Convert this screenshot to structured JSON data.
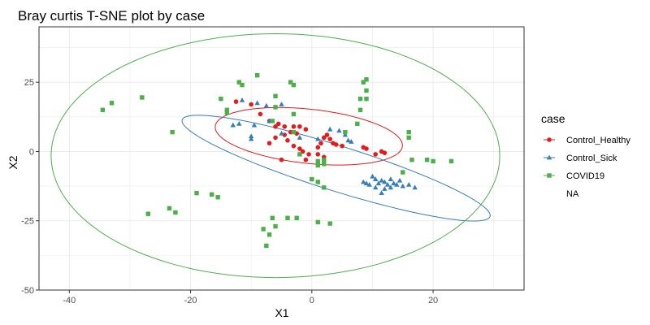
{
  "chart_data": {
    "type": "scatter",
    "title": "Bray curtis T-SNE plot by case",
    "xlabel": "X1",
    "ylabel": "X2",
    "xlim": [
      -45,
      35
    ],
    "ylim": [
      -50,
      45
    ],
    "x_ticks": [
      -40,
      -20,
      0,
      20
    ],
    "y_ticks": [
      -50,
      -25,
      0,
      25
    ],
    "grid": true,
    "legend": {
      "title": "case",
      "position": "right",
      "entries": [
        "Control_Healthy",
        "Control_Sick",
        "COVID19",
        "NA"
      ]
    },
    "series": [
      {
        "name": "Control_Healthy",
        "color": "#e41a1c",
        "marker": "circle",
        "points": [
          [
            -12.5,
            18
          ],
          [
            -10,
            17
          ],
          [
            -8.5,
            13.5
          ],
          [
            -7,
            11
          ],
          [
            -5.5,
            10
          ],
          [
            -4.5,
            9
          ],
          [
            -6,
            9
          ],
          [
            -3,
            9
          ],
          [
            -2,
            9
          ],
          [
            -1,
            8
          ],
          [
            -3.5,
            7
          ],
          [
            -4.5,
            6
          ],
          [
            -2.5,
            6.5
          ],
          [
            -6,
            5
          ],
          [
            -4,
            4
          ],
          [
            -3,
            2
          ],
          [
            -2,
            1
          ],
          [
            -1.5,
            0
          ],
          [
            -0.5,
            -1
          ],
          [
            1,
            1.5
          ],
          [
            1.5,
            3
          ],
          [
            2,
            5
          ],
          [
            2.5,
            6
          ],
          [
            3,
            4.5
          ],
          [
            3.5,
            3
          ],
          [
            4,
            2.5
          ],
          [
            5,
            2
          ],
          [
            1,
            -1
          ],
          [
            -7,
            3
          ],
          [
            -5,
            -3
          ],
          [
            9,
            1
          ],
          [
            11.5,
            0
          ],
          [
            12,
            -0.5
          ],
          [
            10.5,
            -1
          ],
          [
            8.5,
            1.5
          ],
          [
            -1,
            -3
          ],
          [
            2,
            -2
          ]
        ]
      },
      {
        "name": "Control_Sick",
        "color": "#377eb8",
        "marker": "triangle",
        "points": [
          [
            -11.5,
            18.5
          ],
          [
            -9,
            17.5
          ],
          [
            -7.5,
            16.5
          ],
          [
            -5,
            17
          ],
          [
            -12,
            10
          ],
          [
            -13,
            9.5
          ],
          [
            -9.5,
            9.5
          ],
          [
            -7,
            11
          ],
          [
            -10,
            5.5
          ],
          [
            -10,
            4.5
          ],
          [
            -5,
            6.5
          ],
          [
            -2,
            5
          ],
          [
            1,
            4.5
          ],
          [
            4.5,
            7.5
          ],
          [
            5.5,
            6
          ],
          [
            6,
            4
          ],
          [
            6.5,
            3.5
          ],
          [
            3,
            8
          ],
          [
            10,
            -9
          ],
          [
            10.5,
            -10
          ],
          [
            11,
            -11.5
          ],
          [
            11.5,
            -10.5
          ],
          [
            12,
            -11
          ],
          [
            12.5,
            -12
          ],
          [
            13,
            -10
          ],
          [
            13.5,
            -11.5
          ],
          [
            14,
            -12
          ],
          [
            14.5,
            -10.5
          ],
          [
            15,
            -12.5
          ],
          [
            16,
            -12
          ],
          [
            17,
            -13
          ],
          [
            10.5,
            -13
          ],
          [
            9.5,
            -12
          ],
          [
            8.5,
            -11
          ],
          [
            9,
            -11.5
          ],
          [
            12,
            -13.5
          ],
          [
            13,
            -13
          ],
          [
            11.5,
            -15
          ]
        ]
      },
      {
        "name": "COVID19",
        "color": "#4daf4a",
        "marker": "square",
        "points": [
          [
            -34.5,
            15
          ],
          [
            -33,
            17.5
          ],
          [
            -28,
            19.5
          ],
          [
            -27,
            -22.5
          ],
          [
            -23.5,
            -20.5
          ],
          [
            -22.5,
            -22
          ],
          [
            -23,
            7
          ],
          [
            -19,
            -15
          ],
          [
            -16.5,
            -15.5
          ],
          [
            -15.5,
            -16.5
          ],
          [
            -15,
            19
          ],
          [
            -14,
            15
          ],
          [
            -14,
            14
          ],
          [
            -12,
            25
          ],
          [
            -11.5,
            24
          ],
          [
            -9,
            27.5
          ],
          [
            -6.5,
            11
          ],
          [
            -6,
            16
          ],
          [
            -6,
            20
          ],
          [
            -3.5,
            25
          ],
          [
            -3,
            24
          ],
          [
            -3,
            13.5
          ],
          [
            -3,
            7
          ],
          [
            -2,
            -1
          ],
          [
            -8,
            -28
          ],
          [
            -6.5,
            -24
          ],
          [
            -6,
            -27
          ],
          [
            -7.5,
            -34
          ],
          [
            -7,
            -30
          ],
          [
            -4,
            -24
          ],
          [
            -2.5,
            -24
          ],
          [
            0,
            -10
          ],
          [
            1,
            -11
          ],
          [
            1,
            -25.5
          ],
          [
            1,
            -5
          ],
          [
            2,
            -4.5
          ],
          [
            2,
            -13
          ],
          [
            3,
            -26
          ],
          [
            2,
            -3
          ],
          [
            1,
            -3.5
          ],
          [
            5.5,
            7
          ],
          [
            7.5,
            10
          ],
          [
            8,
            15
          ],
          [
            8,
            19
          ],
          [
            8.5,
            25
          ],
          [
            9,
            26
          ],
          [
            9,
            22
          ],
          [
            9,
            19
          ],
          [
            16,
            5
          ],
          [
            16,
            7
          ],
          [
            19,
            -3
          ],
          [
            20,
            -3.5
          ],
          [
            23,
            -3.5
          ],
          [
            16.5,
            -3
          ],
          [
            15,
            -7.5
          ]
        ]
      },
      {
        "name": "NA",
        "color": "#999999",
        "marker": "none",
        "points": []
      }
    ],
    "ellipses": [
      {
        "series": "Control_Healthy",
        "center": [
          -0.5,
          5.5
        ],
        "semi_axes": [
          16,
          9.5
        ],
        "angle_deg": -19
      },
      {
        "series": "Control_Sick",
        "center": [
          4,
          -6
        ],
        "semi_axes": [
          31,
          7
        ],
        "angle_deg": -36
      },
      {
        "series": "COVID19",
        "center": [
          -6,
          -1.5
        ],
        "semi_axes": [
          37,
          44
        ],
        "angle_deg": 0
      }
    ]
  }
}
